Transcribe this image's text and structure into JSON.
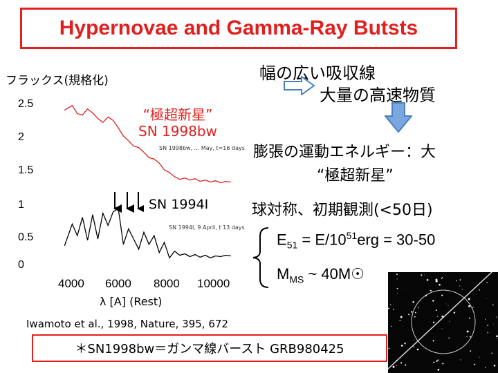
{
  "title": "Hypernovae and Gamma-Ray Butsts",
  "flux_label": "フラックス(規格化)",
  "chart_data": {
    "type": "line",
    "ylabel": "フラックス(規格化)",
    "xlabel": "λ [A] (Rest)",
    "xlim": [
      2600,
      10600
    ],
    "ylim": [
      0,
      2.6
    ],
    "x_ticks": [
      "4000",
      "6000",
      "8000",
      "10000"
    ],
    "y_ticks": [
      "2.5",
      "2",
      "1.5",
      "1",
      "0.5",
      "0"
    ],
    "series": [
      {
        "name": "“極超新星” SN 1998bw",
        "color": "#e0201e",
        "x": [
          3500,
          3800,
          4000,
          4200,
          4400,
          4600,
          4800,
          5000,
          5200,
          5400,
          5600,
          5800,
          6000,
          6200,
          6400,
          6600,
          6800,
          7000,
          7200,
          7400,
          7600,
          7800,
          8000,
          8200,
          8400,
          8600,
          8800,
          9000,
          9200,
          9400,
          9600,
          9800,
          10000
        ],
        "y": [
          2.4,
          2.47,
          2.35,
          2.33,
          2.42,
          2.36,
          2.28,
          2.22,
          2.3,
          2.25,
          2.14,
          2.02,
          1.95,
          1.87,
          1.85,
          1.78,
          1.7,
          1.68,
          1.62,
          1.52,
          1.48,
          1.42,
          1.38,
          1.4,
          1.37,
          1.39,
          1.35,
          1.37,
          1.34,
          1.36,
          1.33,
          1.35,
          1.34
        ]
      },
      {
        "name": "SN 1994I",
        "color": "#000000",
        "x": [
          3500,
          3800,
          4000,
          4200,
          4400,
          4600,
          4800,
          5000,
          5200,
          5400,
          5600,
          5800,
          6000,
          6200,
          6400,
          6600,
          6800,
          7000,
          7200,
          7400,
          7600,
          7800,
          8000,
          8200,
          8400,
          8600,
          8800,
          9000,
          9200,
          9400,
          9600,
          9800,
          10000
        ],
        "y": [
          0.4,
          0.72,
          0.55,
          0.82,
          0.48,
          0.86,
          0.5,
          0.88,
          0.7,
          0.9,
          0.95,
          0.42,
          0.65,
          0.5,
          0.35,
          0.6,
          0.42,
          0.55,
          0.3,
          0.45,
          0.22,
          0.32,
          0.26,
          0.28,
          0.24,
          0.27,
          0.23,
          0.26,
          0.22,
          0.25,
          0.24,
          0.26,
          0.25
        ]
      }
    ],
    "annotations": [
      "SN 1998bw, ... May, t=16 days",
      "SN 1994I, 9 April, t 13 days"
    ]
  },
  "label_sn1998": [
    "“極超新星”",
    "SN 1998bw"
  ],
  "label_sn1994": "SN 1994I",
  "sn1998_small": "SN 1998bw, ... May, t=16 days",
  "sn1994_small": "SN 1994I, 9 April, t 13 days",
  "citation": "Iwamoto et al., 1998, Nature, 395, 672",
  "right": {
    "wide_lines": "幅の広い吸収線",
    "fast_material": "大量の高速物質",
    "expansion_line1": "膨張の運動エネルギー：大",
    "expansion_line2": "“極超新星”",
    "symmetric": "球対称、初期観測(<50日)",
    "e51_prefix": "E",
    "e51_sub": "51",
    "e51_mid": " = E/10",
    "e51_sup": "51",
    "e51_suffix": "erg = 30-50",
    "mms_prefix": "M",
    "mms_sub": "MS",
    "mms_suffix": " ~ 40M",
    "sun_symbol": "☉"
  },
  "bottom_note": "＊SN1998bw＝ガンマ線バースト GRB980425",
  "colors": {
    "accent_red": "#e0201e",
    "arrow_blue": "#4a7fc1"
  },
  "icons": [
    "right-arrow-icon",
    "down-arrow-icon",
    "left-brace-icon",
    "sun-symbol-icon",
    "star-field-photo"
  ]
}
